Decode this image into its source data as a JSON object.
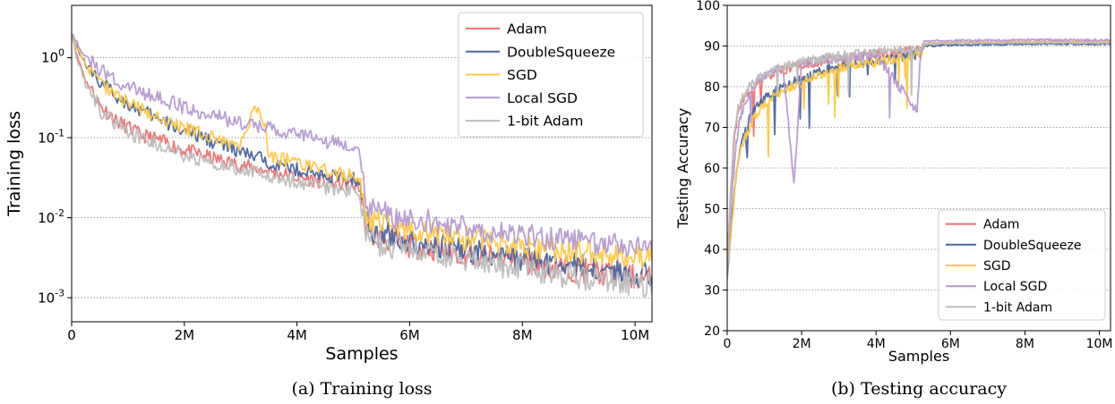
{
  "figure": {
    "caption_a": "(a) Training loss",
    "caption_b": "(b) Testing accuracy"
  },
  "series_colors": {
    "Adam": "#f07070",
    "DoubleSqueeze": "#4a65a0",
    "SGD": "#ffc845",
    "Local SGD": "#b59ad2",
    "1-bit Adam": "#bdbdbd"
  },
  "chart_data": [
    {
      "type": "line",
      "xlabel": "Samples",
      "ylabel": "Training loss",
      "yscale": "log",
      "xlim": [
        0,
        10.3
      ],
      "ylim": [
        0.0005,
        4.5
      ],
      "x_ticks": [
        0,
        2,
        4,
        6,
        8,
        10
      ],
      "x_tick_labels": [
        "0",
        "2M",
        "4M",
        "6M",
        "8M",
        "10M"
      ],
      "y_ticks": [
        0.001,
        0.01,
        0.1,
        1
      ],
      "y_tick_exponents": [
        "-3",
        "-2",
        "-1",
        "0"
      ],
      "y_tick_base": "10",
      "grid": "horizontal dotted",
      "legend_position": "upper right",
      "series": [
        {
          "name": "Adam",
          "x": [
            0,
            0.1,
            0.25,
            0.5,
            0.8,
            1.2,
            1.6,
            2,
            2.5,
            3,
            3.5,
            4,
            4.5,
            5.1,
            5.2,
            5.3,
            6,
            7,
            8,
            9,
            10,
            10.3
          ],
          "y": [
            2,
            1.0,
            0.5,
            0.25,
            0.16,
            0.11,
            0.09,
            0.07,
            0.055,
            0.045,
            0.038,
            0.032,
            0.028,
            0.025,
            0.009,
            0.006,
            0.0045,
            0.0035,
            0.0028,
            0.0022,
            0.0018,
            0.0017
          ]
        },
        {
          "name": "DoubleSqueeze",
          "x": [
            0,
            0.1,
            0.25,
            0.5,
            0.8,
            1.2,
            1.6,
            2,
            2.5,
            3,
            3.5,
            4,
            4.5,
            5.1,
            5.2,
            5.3,
            6,
            7,
            8,
            9,
            10,
            10.3
          ],
          "y": [
            2,
            1.3,
            0.8,
            0.5,
            0.32,
            0.22,
            0.16,
            0.12,
            0.09,
            0.065,
            0.05,
            0.04,
            0.033,
            0.03,
            0.01,
            0.007,
            0.005,
            0.0038,
            0.003,
            0.0025,
            0.002,
            0.0019
          ]
        },
        {
          "name": "SGD",
          "x": [
            0,
            0.1,
            0.25,
            0.5,
            0.8,
            1.2,
            1.6,
            2,
            2.5,
            3,
            3.3,
            3.5,
            4,
            4.5,
            5.1,
            5.2,
            5.3,
            6,
            7,
            8,
            9,
            10,
            10.3
          ],
          "y": [
            2,
            1.3,
            0.8,
            0.5,
            0.33,
            0.23,
            0.17,
            0.13,
            0.1,
            0.075,
            0.25,
            0.06,
            0.048,
            0.038,
            0.032,
            0.012,
            0.009,
            0.007,
            0.0055,
            0.0045,
            0.0038,
            0.0033,
            0.0032
          ]
        },
        {
          "name": "Local SGD",
          "x": [
            0,
            0.1,
            0.25,
            0.5,
            0.8,
            1.2,
            1.6,
            2,
            2.5,
            3,
            3.5,
            4,
            4.5,
            5.1,
            5.2,
            5.3,
            6,
            7,
            8,
            9,
            10,
            10.3
          ],
          "y": [
            2,
            1.5,
            1.0,
            0.7,
            0.5,
            0.38,
            0.3,
            0.24,
            0.19,
            0.15,
            0.13,
            0.11,
            0.09,
            0.08,
            0.015,
            0.012,
            0.0095,
            0.0075,
            0.006,
            0.005,
            0.0045,
            0.0044
          ]
        },
        {
          "name": "1-bit Adam",
          "x": [
            0,
            0.1,
            0.25,
            0.5,
            0.8,
            1.2,
            1.6,
            2,
            2.5,
            3,
            3.5,
            4,
            4.5,
            5.1,
            5.2,
            5.3,
            6,
            7,
            8,
            9,
            10,
            10.3
          ],
          "y": [
            2,
            0.9,
            0.45,
            0.22,
            0.14,
            0.1,
            0.08,
            0.06,
            0.048,
            0.04,
            0.033,
            0.028,
            0.024,
            0.021,
            0.007,
            0.005,
            0.0038,
            0.003,
            0.0023,
            0.0018,
            0.0015,
            0.0014
          ]
        }
      ]
    },
    {
      "type": "line",
      "xlabel": "Samples",
      "ylabel": "Testing Accuracy",
      "xlim": [
        0,
        10.3
      ],
      "ylim": [
        20,
        100
      ],
      "x_ticks": [
        0,
        2,
        4,
        6,
        8,
        10
      ],
      "x_tick_labels": [
        "0",
        "2M",
        "4M",
        "6M",
        "8M",
        "10M"
      ],
      "y_ticks": [
        20,
        30,
        40,
        50,
        60,
        70,
        80,
        90,
        100
      ],
      "y_tick_labels": [
        "20",
        "30",
        "40",
        "50",
        "60",
        "70",
        "80",
        "90",
        "100"
      ],
      "grid": "horizontal dotted",
      "legend_position": "lower right",
      "series": [
        {
          "name": "Adam",
          "x": [
            0,
            0.1,
            0.2,
            0.3,
            0.5,
            0.7,
            1,
            1.5,
            2,
            3,
            4,
            5.2,
            5.3,
            6,
            8,
            10.3
          ],
          "y": [
            35,
            55,
            68,
            74,
            78,
            80,
            82,
            84,
            85.5,
            87,
            88,
            89,
            90.5,
            90.8,
            91,
            91
          ]
        },
        {
          "name": "DoubleSqueeze",
          "x": [
            0,
            0.1,
            0.2,
            0.3,
            0.5,
            0.7,
            1,
            1.5,
            2,
            3,
            4,
            5.2,
            5.3,
            6,
            8,
            10.3
          ],
          "y": [
            34,
            45,
            55,
            63,
            70,
            74,
            77,
            80,
            82,
            85,
            86.5,
            88,
            90,
            90.3,
            90.5,
            90.5
          ]
        },
        {
          "name": "SGD",
          "x": [
            0,
            0.1,
            0.2,
            0.3,
            0.5,
            0.7,
            1,
            1.5,
            2,
            3,
            4,
            5.2,
            5.3,
            6,
            8,
            10.3
          ],
          "y": [
            34,
            44,
            54,
            62,
            68,
            72,
            76,
            79,
            81,
            84.5,
            86,
            88,
            90.5,
            90.8,
            91,
            91
          ]
        },
        {
          "name": "Local SGD",
          "x": [
            0,
            0.1,
            0.2,
            0.3,
            0.5,
            0.7,
            1,
            1.5,
            1.8,
            2,
            3,
            4,
            5.1,
            5.2,
            5.3,
            6,
            8,
            10.3
          ],
          "y": [
            35,
            50,
            62,
            70,
            77,
            80,
            83,
            85,
            56,
            86,
            87,
            88,
            74,
            89,
            91.2,
            91.3,
            91.5,
            91.5
          ]
        },
        {
          "name": "1-bit Adam",
          "x": [
            0,
            0.1,
            0.2,
            0.3,
            0.5,
            0.7,
            1,
            1.5,
            2,
            3,
            4,
            5.2,
            5.3,
            6,
            8,
            10.3
          ],
          "y": [
            36,
            56,
            70,
            75,
            79,
            81,
            83,
            85,
            86,
            87.5,
            88.5,
            89.5,
            90.5,
            90.7,
            90.8,
            90.8
          ]
        }
      ]
    }
  ]
}
